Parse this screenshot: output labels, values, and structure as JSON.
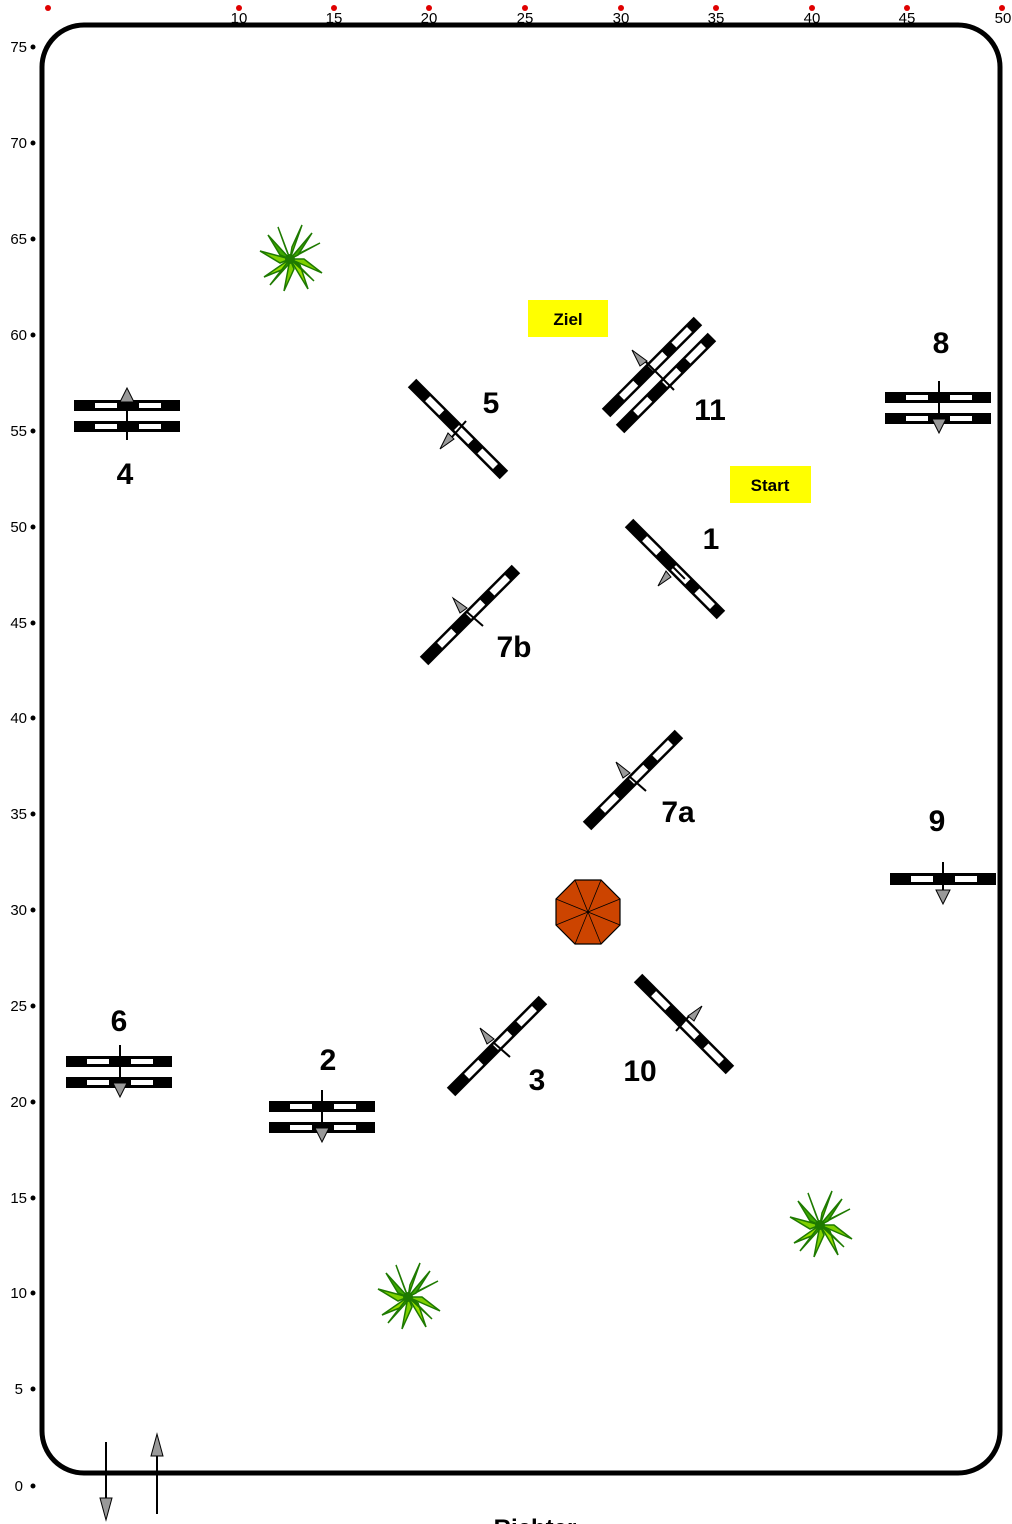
{
  "axes": {
    "x_ticks": [
      "10",
      "15",
      "20",
      "25",
      "30",
      "35",
      "40",
      "45",
      "50"
    ],
    "y_ticks": [
      "75",
      "70",
      "65",
      "60",
      "55",
      "50",
      "45",
      "40",
      "35",
      "30",
      "25",
      "20",
      "15",
      "10",
      "5",
      "0"
    ]
  },
  "jumps": {
    "j1": "1",
    "j2": "2",
    "j3": "3",
    "j4": "4",
    "j5": "5",
    "j6": "6",
    "j7a": "7a",
    "j7b": "7b",
    "j8": "8",
    "j9": "9",
    "j10": "10",
    "j11": "11"
  },
  "signs": {
    "start": "Start",
    "finish": "Ziel"
  },
  "judge": "Richter",
  "colors": {
    "sign_bg": "#ffff00",
    "tick_dot": "#e00000",
    "arrow_fill": "#999999",
    "plant_leaf": "#7fd000",
    "plant_dark": "#1e7a00",
    "umbrella": "#cc4400"
  }
}
